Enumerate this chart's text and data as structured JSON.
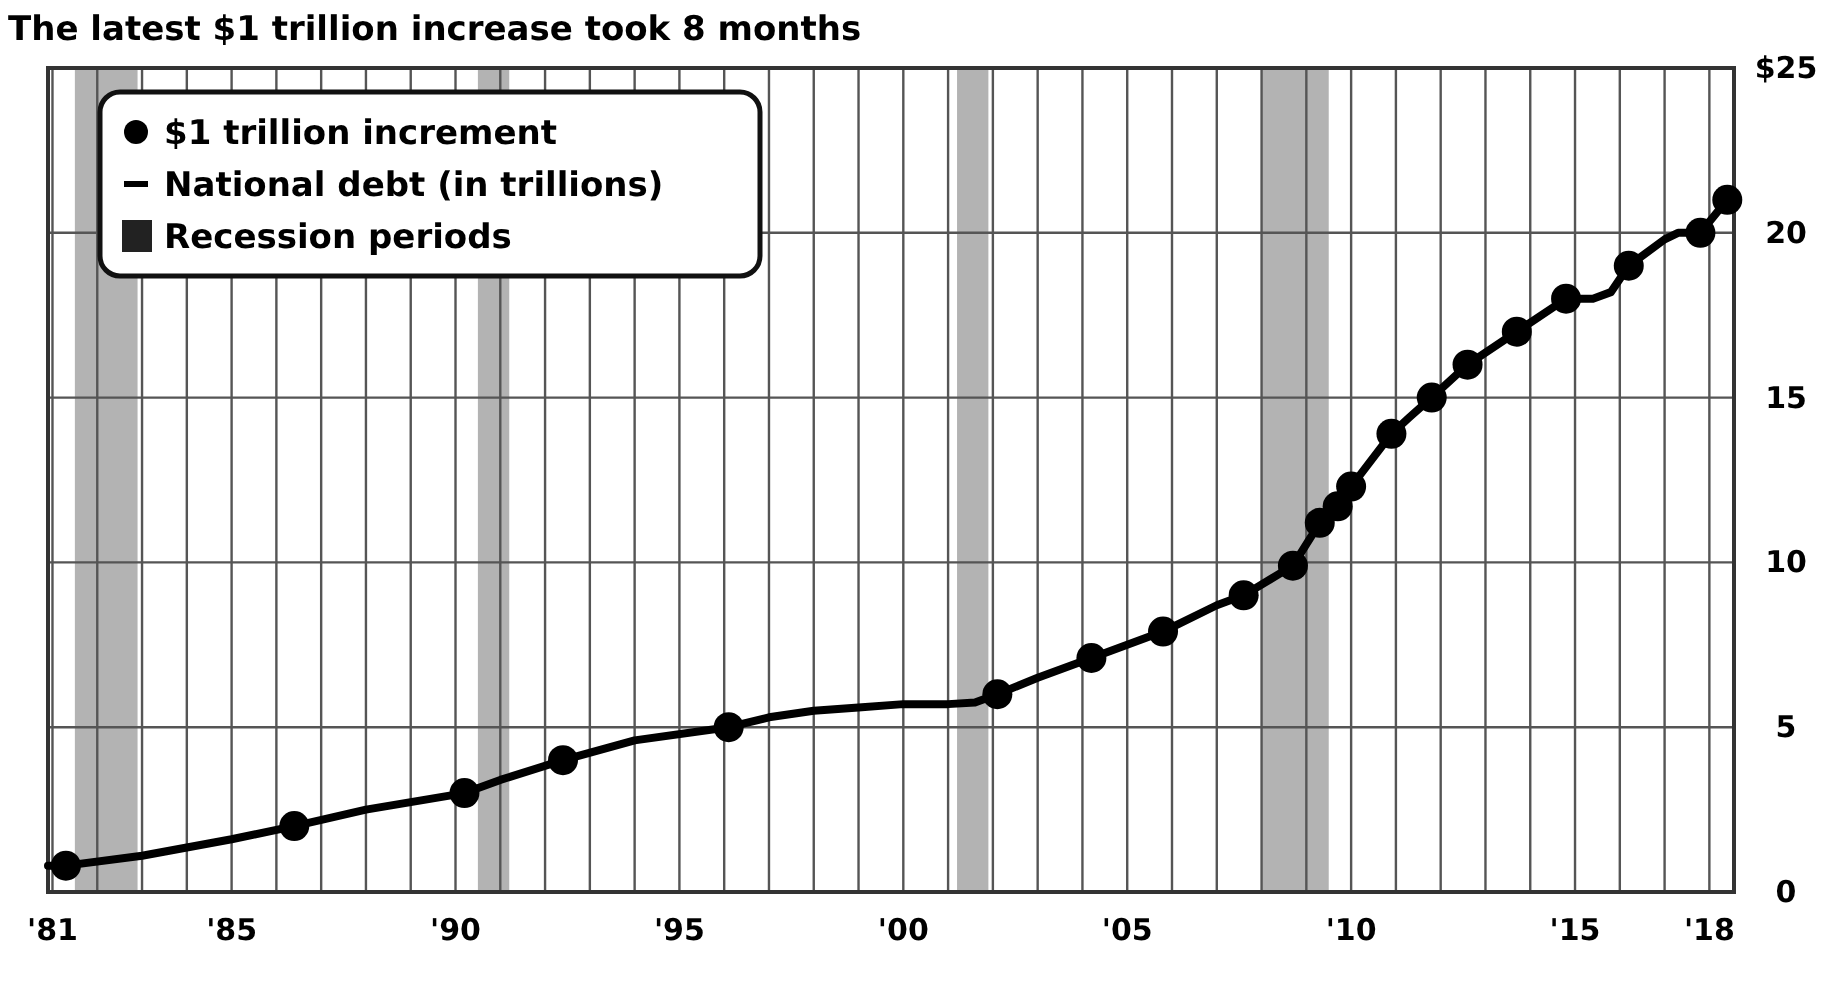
{
  "chart_data": {
    "type": "line",
    "title": "The latest $1 trillion increase took 8 months",
    "xlim": [
      1980.9,
      2018.55
    ],
    "xticks": [
      {
        "value": 1981,
        "label": "'81"
      },
      {
        "value": 1982,
        "label": null
      },
      {
        "value": 1983,
        "label": null
      },
      {
        "value": 1984,
        "label": null
      },
      {
        "value": 1985,
        "label": "'85"
      },
      {
        "value": 1986,
        "label": null
      },
      {
        "value": 1987,
        "label": null
      },
      {
        "value": 1988,
        "label": null
      },
      {
        "value": 1989,
        "label": null
      },
      {
        "value": 1990,
        "label": "'90"
      },
      {
        "value": 1991,
        "label": null
      },
      {
        "value": 1992,
        "label": null
      },
      {
        "value": 1993,
        "label": null
      },
      {
        "value": 1994,
        "label": null
      },
      {
        "value": 1995,
        "label": "'95"
      },
      {
        "value": 1996,
        "label": null
      },
      {
        "value": 1997,
        "label": null
      },
      {
        "value": 1998,
        "label": null
      },
      {
        "value": 1999,
        "label": null
      },
      {
        "value": 2000,
        "label": "'00"
      },
      {
        "value": 2001,
        "label": null
      },
      {
        "value": 2002,
        "label": null
      },
      {
        "value": 2003,
        "label": null
      },
      {
        "value": 2004,
        "label": null
      },
      {
        "value": 2005,
        "label": "'05"
      },
      {
        "value": 2006,
        "label": null
      },
      {
        "value": 2007,
        "label": null
      },
      {
        "value": 2008,
        "label": null
      },
      {
        "value": 2009,
        "label": null
      },
      {
        "value": 2010,
        "label": "'10"
      },
      {
        "value": 2011,
        "label": null
      },
      {
        "value": 2012,
        "label": null
      },
      {
        "value": 2013,
        "label": null
      },
      {
        "value": 2014,
        "label": null
      },
      {
        "value": 2015,
        "label": "'15"
      },
      {
        "value": 2016,
        "label": null
      },
      {
        "value": 2017,
        "label": null
      },
      {
        "value": 2018,
        "label": "'18"
      }
    ],
    "ylim": [
      0,
      25
    ],
    "yticks": [
      0,
      5,
      10,
      15,
      20,
      {
        "value": 25,
        "label": "$25"
      }
    ],
    "grid": true,
    "legend": "top left",
    "bands": [
      {
        "axis": "x",
        "from": 1981.5,
        "to": 1982.9,
        "label": "Recession periods",
        "color": "#b3b3b3"
      },
      {
        "axis": "x",
        "from": 1990.5,
        "to": 1991.2,
        "color": "#b3b3b3"
      },
      {
        "axis": "x",
        "from": 2001.2,
        "to": 2001.9,
        "color": "#b3b3b3"
      },
      {
        "axis": "x",
        "from": 2008.0,
        "to": 2009.5,
        "color": "#b3b3b3"
      }
    ],
    "series": [
      {
        "name": "$1 trillion increment",
        "type": "scatter",
        "marker": "circle",
        "color": "#000000",
        "x": [
          1981.3,
          1986.4,
          1990.2,
          1992.4,
          1996.1,
          2002.1,
          2004.2,
          2005.8,
          2007.6,
          2008.7,
          2009.3,
          2009.7,
          2010.0,
          2010.9,
          2011.8,
          2012.6,
          2013.7,
          2014.8,
          2016.2,
          2017.8,
          2018.4
        ],
        "values": [
          0.8,
          2.0,
          3.0,
          4.0,
          5.0,
          6.0,
          7.1,
          7.9,
          9.0,
          9.9,
          11.2,
          11.7,
          12.3,
          13.9,
          15.0,
          16.0,
          17.0,
          18.0,
          19.0,
          20.0,
          21.0
        ]
      },
      {
        "name": "National debt (in trillions)",
        "color": "#000000",
        "x": [
          1980.9,
          1981.3,
          1983,
          1985,
          1986.4,
          1988,
          1990.2,
          1991,
          1992.4,
          1994,
          1996.1,
          1997,
          1998,
          1999,
          2000,
          2001,
          2001.6,
          2002.1,
          2003,
          2004.2,
          2005.8,
          2007,
          2007.6,
          2008.7,
          2009.3,
          2009.7,
          2010.0,
          2010.9,
          2011.3,
          2011.8,
          2012.6,
          2013.7,
          2014.8,
          2015.4,
          2015.8,
          2016.2,
          2017.0,
          2017.3,
          2017.8,
          2018.4
        ],
        "values": [
          0.8,
          0.8,
          1.1,
          1.6,
          2.0,
          2.5,
          3.0,
          3.4,
          4.0,
          4.6,
          5.0,
          5.3,
          5.5,
          5.6,
          5.7,
          5.7,
          5.75,
          6.0,
          6.5,
          7.1,
          7.9,
          8.7,
          9.0,
          9.9,
          11.2,
          11.7,
          12.3,
          13.9,
          14.4,
          15.0,
          16.0,
          17.0,
          18.0,
          18.0,
          18.2,
          19.0,
          19.8,
          20.0,
          20.0,
          21.0
        ]
      }
    ]
  }
}
